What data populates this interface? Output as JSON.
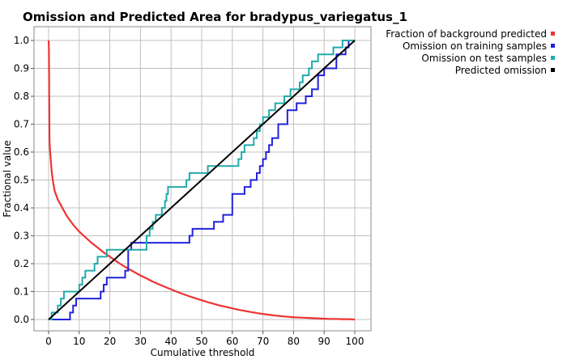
{
  "chart_data": {
    "type": "line",
    "title": "Omission and Predicted Area for bradypus_variegatus_1",
    "xlabel": "Cumulative threshold",
    "ylabel": "Fractional value",
    "xlim": [
      0,
      100
    ],
    "ylim": [
      0,
      1
    ],
    "xticks": [
      "0",
      "10",
      "20",
      "30",
      "40",
      "50",
      "60",
      "70",
      "80",
      "90",
      "100"
    ],
    "yticks": [
      "0.0",
      "0.1",
      "0.2",
      "0.3",
      "0.4",
      "0.5",
      "0.6",
      "0.7",
      "0.8",
      "0.9",
      "1.0"
    ],
    "xtick_values": [
      0,
      10,
      20,
      30,
      40,
      50,
      60,
      70,
      80,
      90,
      100
    ],
    "ytick_values": [
      0,
      0.1,
      0.2,
      0.3,
      0.4,
      0.5,
      0.6,
      0.7,
      0.8,
      0.9,
      1.0
    ],
    "grid": true,
    "legend_position": "right",
    "series": [
      {
        "name": "Fraction of background predicted",
        "color": "#ee3333",
        "kind": "line",
        "x": [
          0,
          0.1,
          0.2,
          0.3,
          0.5,
          0.8,
          1,
          1.5,
          2,
          3,
          4,
          5,
          6,
          7,
          8,
          10,
          12,
          14,
          16,
          18,
          20,
          22,
          24,
          26,
          28,
          30,
          32,
          34,
          36,
          38,
          40,
          42,
          44,
          46,
          48,
          50,
          52,
          54,
          56,
          58,
          60,
          62,
          64,
          66,
          68,
          70,
          72,
          74,
          76,
          78,
          80,
          82,
          84,
          86,
          88,
          90,
          92,
          94,
          96,
          98,
          100
        ],
        "y": [
          1.0,
          0.97,
          0.8,
          0.64,
          0.6,
          0.56,
          0.53,
          0.49,
          0.46,
          0.43,
          0.41,
          0.39,
          0.37,
          0.355,
          0.34,
          0.315,
          0.295,
          0.275,
          0.258,
          0.24,
          0.225,
          0.21,
          0.195,
          0.182,
          0.17,
          0.158,
          0.147,
          0.136,
          0.126,
          0.117,
          0.108,
          0.099,
          0.091,
          0.083,
          0.076,
          0.069,
          0.062,
          0.056,
          0.05,
          0.045,
          0.04,
          0.035,
          0.031,
          0.027,
          0.023,
          0.02,
          0.017,
          0.014,
          0.012,
          0.01,
          0.008,
          0.007,
          0.006,
          0.005,
          0.004,
          0.003,
          0.002,
          0.002,
          0.001,
          0.001,
          0.0
        ]
      },
      {
        "name": "Omission on training samples",
        "color": "#2222dd",
        "kind": "step",
        "x": [
          0,
          7,
          8,
          9,
          17,
          18,
          19,
          25,
          26,
          27,
          46,
          47,
          54,
          57,
          60,
          64,
          66,
          68,
          69,
          70,
          71,
          72,
          73,
          75,
          78,
          81,
          84,
          86,
          88,
          90,
          94,
          97,
          98,
          100
        ],
        "y": [
          0,
          0.025,
          0.05,
          0.075,
          0.1,
          0.125,
          0.15,
          0.175,
          0.25,
          0.275,
          0.3,
          0.325,
          0.35,
          0.375,
          0.45,
          0.475,
          0.5,
          0.525,
          0.55,
          0.575,
          0.6,
          0.625,
          0.65,
          0.7,
          0.75,
          0.775,
          0.8,
          0.825,
          0.875,
          0.9,
          0.95,
          0.975,
          1.0,
          1.0
        ]
      },
      {
        "name": "Omission on test samples",
        "color": "#22aaaa",
        "kind": "step",
        "x": [
          0,
          1,
          3,
          4,
          5,
          10,
          11,
          12,
          15,
          16,
          19,
          32,
          33,
          34,
          35,
          37,
          38,
          38.5,
          39,
          45,
          46,
          52,
          62,
          63,
          64,
          67,
          68,
          69,
          70,
          72,
          74,
          77,
          79,
          82,
          83,
          85,
          86,
          88,
          93,
          96,
          100
        ],
        "y": [
          0,
          0.025,
          0.05,
          0.075,
          0.1,
          0.125,
          0.15,
          0.175,
          0.2,
          0.225,
          0.25,
          0.3,
          0.325,
          0.35,
          0.375,
          0.4,
          0.425,
          0.45,
          0.475,
          0.5,
          0.525,
          0.55,
          0.575,
          0.6,
          0.625,
          0.65,
          0.675,
          0.7,
          0.725,
          0.75,
          0.775,
          0.8,
          0.825,
          0.85,
          0.875,
          0.9,
          0.925,
          0.95,
          0.975,
          1.0,
          1.0
        ]
      },
      {
        "name": "Predicted omission",
        "color": "#000000",
        "kind": "line",
        "x": [
          0,
          100
        ],
        "y": [
          0,
          1
        ]
      }
    ]
  }
}
